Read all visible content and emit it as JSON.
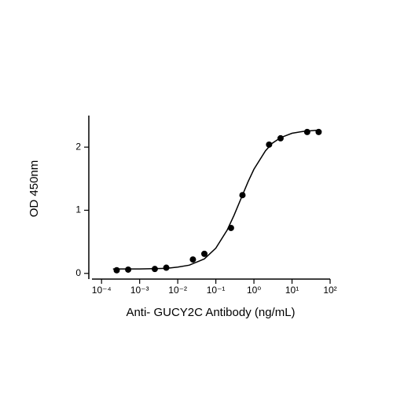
{
  "chart_data": {
    "type": "scatter",
    "x_label": "Anti- GUCY2C Antibody (ng/mL)",
    "y_label": "OD 450nm",
    "xscale": "log",
    "xlim": [
      5.6e-05,
      100
    ],
    "ylim": [
      -0.09,
      2.5
    ],
    "xticks": [
      {
        "value": 0.0001,
        "label": "10⁻⁴"
      },
      {
        "value": 0.001,
        "label": "10⁻³"
      },
      {
        "value": 0.01,
        "label": "10⁻²"
      },
      {
        "value": 0.1,
        "label": "10⁻¹"
      },
      {
        "value": 1,
        "label": "10⁰"
      },
      {
        "value": 10,
        "label": "10¹"
      },
      {
        "value": 100,
        "label": "10²"
      }
    ],
    "yticks": [
      0,
      1,
      2
    ],
    "color": "#000000",
    "points": {
      "x": [
        0.00025,
        0.0005,
        0.0025,
        0.005,
        0.025,
        0.05,
        0.25,
        0.5,
        2.5,
        5,
        25,
        50
      ],
      "values": [
        0.05,
        0.06,
        0.07,
        0.09,
        0.22,
        0.31,
        0.72,
        1.24,
        2.04,
        2.14,
        2.24,
        2.24
      ]
    },
    "fit": {
      "x": [
        0.0002,
        0.001,
        0.005,
        0.01,
        0.02,
        0.05,
        0.1,
        0.2,
        0.3,
        0.5,
        0.7,
        1,
        2,
        3,
        5,
        10,
        20,
        50
      ],
      "values": [
        0.07,
        0.07,
        0.08,
        0.1,
        0.13,
        0.23,
        0.4,
        0.69,
        0.92,
        1.24,
        1.45,
        1.65,
        1.94,
        2.06,
        2.15,
        2.22,
        2.25,
        2.27
      ]
    }
  }
}
